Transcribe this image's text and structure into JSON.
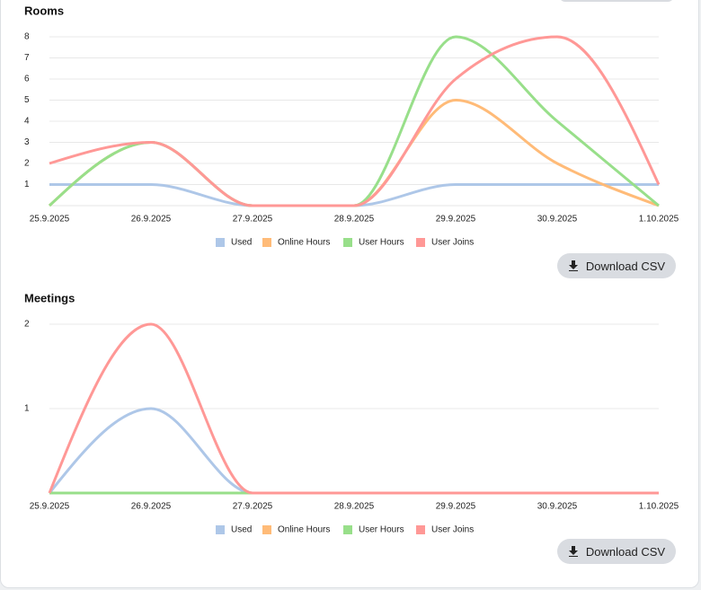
{
  "chart_data": [
    {
      "type": "line",
      "title": "Rooms",
      "categories": [
        "25.9.2025",
        "26.9.2025",
        "27.9.2025",
        "28.9.2025",
        "29.9.2025",
        "30.9.2025",
        "1.10.2025"
      ],
      "series": [
        {
          "name": "Used",
          "color": "#aec7e8",
          "values": [
            1,
            1,
            0,
            0,
            1,
            1,
            1
          ]
        },
        {
          "name": "Online Hours",
          "color": "#ffbb78",
          "values": [
            0,
            3,
            0,
            0,
            5,
            2,
            0
          ]
        },
        {
          "name": "User Hours",
          "color": "#98df8a",
          "values": [
            0,
            3,
            0,
            0,
            8,
            4,
            0
          ]
        },
        {
          "name": "User Joins",
          "color": "#ff9896",
          "values": [
            2,
            3,
            0,
            0,
            6,
            8,
            1
          ]
        }
      ],
      "ylim": [
        0,
        8
      ],
      "yticks": [
        1,
        2,
        3,
        4,
        5,
        6,
        7,
        8
      ],
      "grid": true
    },
    {
      "type": "line",
      "title": "Meetings",
      "categories": [
        "25.9.2025",
        "26.9.2025",
        "27.9.2025",
        "28.9.2025",
        "29.9.2025",
        "30.9.2025",
        "1.10.2025"
      ],
      "series": [
        {
          "name": "Used",
          "color": "#aec7e8",
          "values": [
            0,
            1,
            0,
            0,
            0,
            0,
            0
          ]
        },
        {
          "name": "Online Hours",
          "color": "#ffbb78",
          "values": [
            0,
            0,
            0,
            0,
            0,
            0,
            0
          ]
        },
        {
          "name": "User Hours",
          "color": "#98df8a",
          "values": [
            0,
            0,
            0,
            0,
            0,
            0,
            0
          ]
        },
        {
          "name": "User Joins",
          "color": "#ff9896",
          "values": [
            0,
            2,
            0,
            0,
            0,
            0,
            0
          ]
        }
      ],
      "ylim": [
        0,
        2
      ],
      "yticks": [
        1,
        2
      ],
      "grid": true
    }
  ],
  "buttons": [
    "Download CSV",
    "Download CSV"
  ]
}
